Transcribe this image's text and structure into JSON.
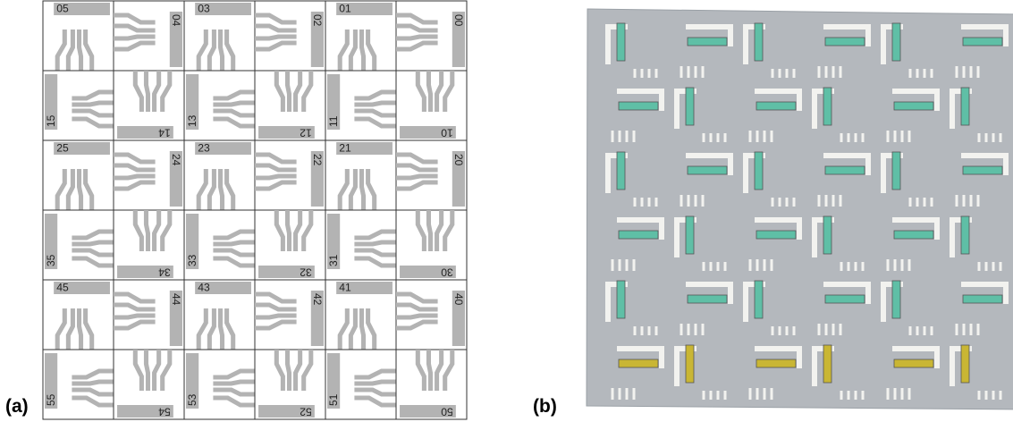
{
  "panel_a": {
    "label": "(a)",
    "grid": {
      "rows": [
        [
          "05",
          "04",
          "03",
          "02",
          "01",
          "00"
        ],
        [
          "15",
          "14",
          "13",
          "12",
          "11",
          "10"
        ],
        [
          "25",
          "24",
          "23",
          "22",
          "21",
          "20"
        ],
        [
          "35",
          "34",
          "33",
          "32",
          "31",
          "30"
        ],
        [
          "45",
          "44",
          "43",
          "42",
          "41",
          "40"
        ],
        [
          "55",
          "54",
          "53",
          "52",
          "51",
          "50"
        ]
      ]
    }
  },
  "panel_b": {
    "label": "(b)"
  }
}
